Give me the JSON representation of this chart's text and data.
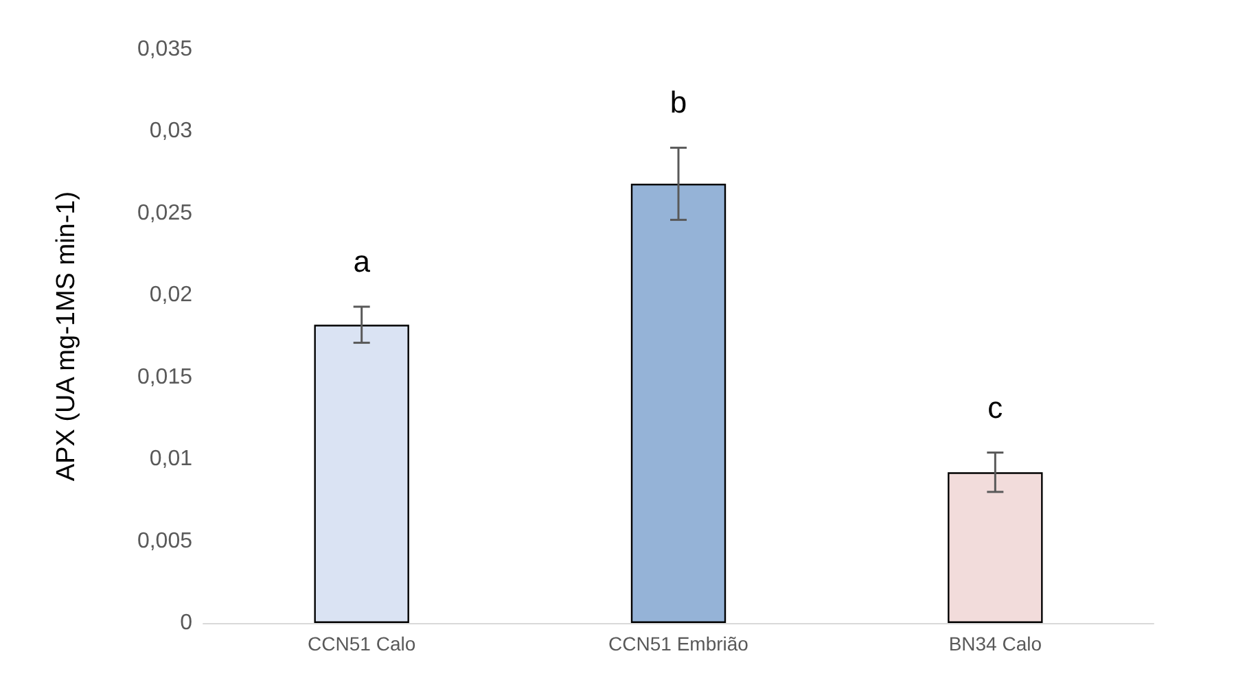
{
  "chart_data": {
    "type": "bar",
    "ylabel": "APX (UA mg-1MS min-1)",
    "categories": [
      "CCN51 Calo",
      "CCN51 Embrião",
      "BN34 Calo"
    ],
    "values": [
      0.0182,
      0.0268,
      0.0092
    ],
    "colors": [
      "#dae3f3",
      "#95b3d7",
      "#f2dcdb"
    ],
    "errors": [
      0.0011,
      0.0022,
      0.0012
    ],
    "ylim": [
      0,
      0.035
    ],
    "yticks": [
      {
        "value": 0,
        "label": "0"
      },
      {
        "value": 0.005,
        "label": "0,005"
      },
      {
        "value": 0.01,
        "label": "0,01"
      },
      {
        "value": 0.015,
        "label": "0,015"
      },
      {
        "value": 0.02,
        "label": "0,02"
      },
      {
        "value": 0.025,
        "label": "0,025"
      },
      {
        "value": 0.03,
        "label": "0,03"
      },
      {
        "value": 0.035,
        "label": "0,035"
      }
    ],
    "value_labels": [
      "a",
      "b",
      "c"
    ],
    "grid": false
  }
}
